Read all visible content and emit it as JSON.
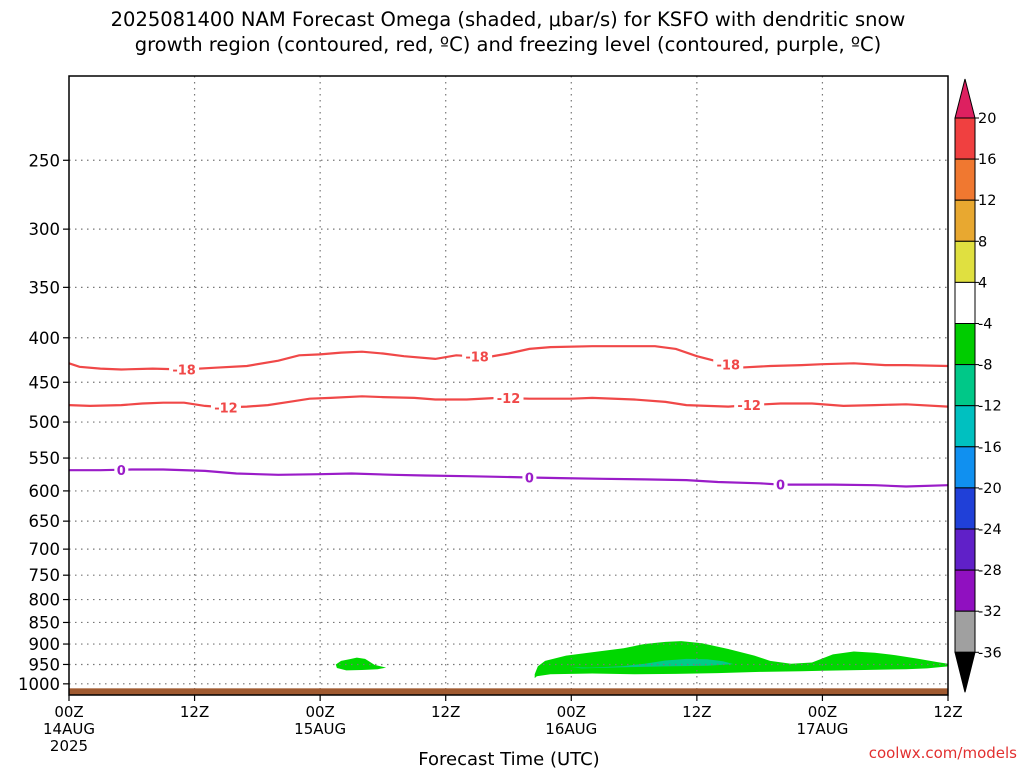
{
  "title_lines": [
    "2025081400 NAM Forecast Omega (shaded, μbar/s) for KSFO with dendritic snow",
    "growth region (contoured, red, ºC) and freezing level (contoured, purple, ºC)"
  ],
  "credit": "coolwx.com/models",
  "chart_data": {
    "type": "heatmap",
    "xlabel": "Forecast Time (UTC)",
    "ylabel": "",
    "xlim": [
      0,
      84
    ],
    "ylim": [
      1030,
      200
    ],
    "yscale": "log",
    "grid": true,
    "x_ticks": [
      {
        "hour": 0,
        "lines": [
          "00Z",
          "14AUG",
          "2025"
        ]
      },
      {
        "hour": 12,
        "lines": [
          "12Z"
        ]
      },
      {
        "hour": 24,
        "lines": [
          "00Z",
          "15AUG"
        ]
      },
      {
        "hour": 36,
        "lines": [
          "12Z"
        ]
      },
      {
        "hour": 48,
        "lines": [
          "00Z",
          "16AUG"
        ]
      },
      {
        "hour": 60,
        "lines": [
          "12Z"
        ]
      },
      {
        "hour": 72,
        "lines": [
          "00Z",
          "17AUG"
        ]
      },
      {
        "hour": 84,
        "lines": [
          "12Z"
        ]
      }
    ],
    "y_ticks": [
      250,
      300,
      350,
      400,
      450,
      500,
      550,
      600,
      650,
      700,
      750,
      800,
      850,
      900,
      950,
      1000
    ],
    "contours": [
      {
        "label": "-18",
        "color": "#f04848",
        "label_hours": [
          11,
          39,
          63
        ],
        "points": [
          [
            0,
            428
          ],
          [
            1,
            432
          ],
          [
            3,
            434
          ],
          [
            5,
            435
          ],
          [
            8,
            434
          ],
          [
            11,
            435
          ],
          [
            14,
            433
          ],
          [
            17,
            431
          ],
          [
            20,
            425
          ],
          [
            22,
            419
          ],
          [
            24,
            418
          ],
          [
            26,
            416
          ],
          [
            28,
            415
          ],
          [
            30,
            417
          ],
          [
            32,
            420
          ],
          [
            35,
            423
          ],
          [
            37,
            419
          ],
          [
            40,
            421
          ],
          [
            42,
            417
          ],
          [
            44,
            412
          ],
          [
            46,
            410
          ],
          [
            50,
            409
          ],
          [
            56,
            409
          ],
          [
            58,
            412
          ],
          [
            60,
            420
          ],
          [
            62,
            426
          ],
          [
            64,
            433
          ],
          [
            67,
            431
          ],
          [
            70,
            430
          ],
          [
            72,
            429
          ],
          [
            75,
            428
          ],
          [
            78,
            430
          ],
          [
            80,
            430
          ],
          [
            84,
            431
          ]
        ]
      },
      {
        "label": "-12",
        "color": "#f04848",
        "label_hours": [
          15,
          42,
          65
        ],
        "points": [
          [
            0,
            478
          ],
          [
            2,
            479
          ],
          [
            5,
            478
          ],
          [
            7,
            476
          ],
          [
            9,
            475
          ],
          [
            11,
            475
          ],
          [
            13,
            479
          ],
          [
            15,
            481
          ],
          [
            17,
            480
          ],
          [
            19,
            478
          ],
          [
            21,
            474
          ],
          [
            23,
            470
          ],
          [
            25,
            469
          ],
          [
            28,
            467
          ],
          [
            30,
            468
          ],
          [
            33,
            469
          ],
          [
            35,
            471
          ],
          [
            38,
            471
          ],
          [
            41,
            469
          ],
          [
            44,
            470
          ],
          [
            48,
            470
          ],
          [
            50,
            469
          ],
          [
            54,
            471
          ],
          [
            57,
            474
          ],
          [
            59,
            478
          ],
          [
            61,
            479
          ],
          [
            63,
            480
          ],
          [
            65,
            478
          ],
          [
            68,
            476
          ],
          [
            71,
            476
          ],
          [
            74,
            479
          ],
          [
            77,
            478
          ],
          [
            80,
            477
          ],
          [
            84,
            480
          ]
        ]
      },
      {
        "label": "0",
        "color": "#9a1cc8",
        "label_hours": [
          5,
          44,
          68
        ],
        "points": [
          [
            0,
            568
          ],
          [
            3,
            568
          ],
          [
            6,
            567
          ],
          [
            9,
            567
          ],
          [
            13,
            569
          ],
          [
            16,
            573
          ],
          [
            20,
            575
          ],
          [
            24,
            574
          ],
          [
            27,
            573
          ],
          [
            31,
            575
          ],
          [
            34,
            576
          ],
          [
            38,
            577
          ],
          [
            41,
            578
          ],
          [
            44,
            579
          ],
          [
            47,
            580
          ],
          [
            51,
            581
          ],
          [
            55,
            582
          ],
          [
            59,
            583
          ],
          [
            62,
            586
          ],
          [
            66,
            588
          ],
          [
            68,
            590
          ],
          [
            70,
            590
          ],
          [
            73,
            590
          ],
          [
            77,
            591
          ],
          [
            80,
            593
          ],
          [
            84,
            591
          ]
        ]
      }
    ],
    "omega_regions": [
      {
        "level": "-8 to -4",
        "color": "#00d800",
        "points": [
          [
            25.5,
            950
          ],
          [
            26,
            941
          ],
          [
            26.8,
            937
          ],
          [
            27.5,
            933
          ],
          [
            28.3,
            936
          ],
          [
            28.6,
            941
          ],
          [
            29.2,
            951
          ],
          [
            30.3,
            958
          ],
          [
            29.5,
            962
          ],
          [
            28,
            964
          ],
          [
            26.5,
            965
          ],
          [
            25.6,
            959
          ]
        ]
      },
      {
        "level": "-8 to -4",
        "color": "#00d800",
        "points": [
          [
            44.5,
            985
          ],
          [
            44.5,
            975
          ],
          [
            44.8,
            955
          ],
          [
            45.5,
            941
          ],
          [
            47.5,
            928
          ],
          [
            50,
            920
          ],
          [
            53,
            910
          ],
          [
            55,
            900
          ],
          [
            57,
            895
          ],
          [
            58.5,
            893
          ],
          [
            60.5,
            898
          ],
          [
            63,
            912
          ],
          [
            65.5,
            928
          ],
          [
            67,
            941
          ],
          [
            69,
            948
          ],
          [
            71,
            945
          ],
          [
            73,
            925
          ],
          [
            75,
            918
          ],
          [
            77,
            921
          ],
          [
            79,
            927
          ],
          [
            81,
            935
          ],
          [
            83,
            944
          ],
          [
            84,
            948
          ],
          [
            84,
            955
          ],
          [
            82,
            960
          ],
          [
            80,
            962
          ],
          [
            76,
            964
          ],
          [
            72,
            966
          ],
          [
            70,
            967
          ],
          [
            66,
            969
          ],
          [
            62,
            972
          ],
          [
            58,
            974
          ],
          [
            54,
            975
          ],
          [
            50,
            973
          ],
          [
            46,
            975
          ],
          [
            44.7,
            980
          ]
        ]
      },
      {
        "level": "-12 to -8",
        "color": "#00cc88",
        "points": [
          [
            48,
            957
          ],
          [
            50,
            958
          ],
          [
            53,
            954
          ],
          [
            55,
            948
          ],
          [
            57,
            940
          ],
          [
            59,
            936
          ],
          [
            61,
            937
          ],
          [
            62.5,
            942
          ],
          [
            63.5,
            949
          ],
          [
            61,
            953
          ],
          [
            57,
            955
          ],
          [
            53,
            957
          ],
          [
            49,
            960
          ]
        ]
      }
    ],
    "terrain_color": "#a05a30",
    "colorbar": {
      "ticks": [
        20,
        16,
        12,
        8,
        4,
        -4,
        -8,
        -12,
        -16,
        -20,
        -24,
        -28,
        -32,
        -36
      ],
      "colors_top_down": [
        "#dd2060",
        "#f04040",
        "#f07830",
        "#e8a830",
        "#e0e040",
        "#ffffff",
        "#00cc00",
        "#00c888",
        "#00c0c0",
        "#1090f0",
        "#2040d8",
        "#6020c8",
        "#9010c0",
        "#a0a0a0",
        "#000000"
      ]
    }
  }
}
